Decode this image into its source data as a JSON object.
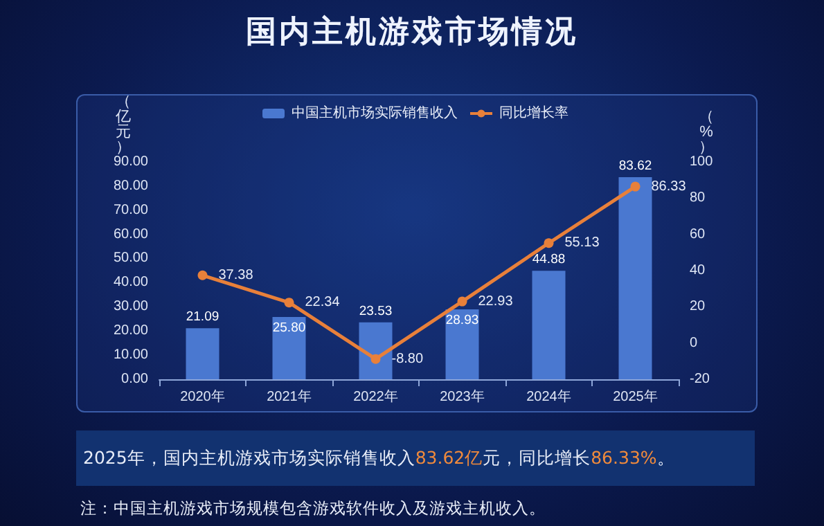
{
  "chart_data": {
    "type": "bar",
    "title": "国内主机游戏市场情况",
    "categories": [
      "2020年",
      "2021年",
      "2022年",
      "2023年",
      "2024年",
      "2025年"
    ],
    "series": [
      {
        "name": "中国主机市场实际销售收入",
        "color": "#4a78d0",
        "values": [
          21.09,
          25.8,
          23.53,
          28.93,
          44.88,
          83.62
        ],
        "value_labels": [
          "21.09",
          "25.80",
          "23.53",
          "28.93",
          "44.88",
          "83.62"
        ]
      },
      {
        "name": "同比增长率",
        "type": "line",
        "axis": "y2",
        "color": "#e8803a",
        "values": [
          37.38,
          22.34,
          -8.8,
          22.93,
          55.13,
          86.33
        ],
        "value_labels": [
          "37.38",
          "22.34",
          "-8.80",
          "22.93",
          "55.13",
          "86.33"
        ]
      }
    ],
    "ylabel": "（亿元）",
    "y2label": "（%）",
    "ylim": [
      0,
      90
    ],
    "yticks": [
      {
        "value": 0,
        "label": "0.00"
      },
      {
        "value": 10,
        "label": "10.00"
      },
      {
        "value": 20,
        "label": "20.00"
      },
      {
        "value": 30,
        "label": "30.00"
      },
      {
        "value": 40,
        "label": "40.00"
      },
      {
        "value": 50,
        "label": "50.00"
      },
      {
        "value": 60,
        "label": "60.00"
      },
      {
        "value": 70,
        "label": "70.00"
      },
      {
        "value": 80,
        "label": "80.00"
      },
      {
        "value": 90,
        "label": "90.00"
      }
    ],
    "y2lim": [
      -20,
      100
    ],
    "y2ticks": [
      -20,
      0,
      20,
      40,
      60,
      80,
      100
    ],
    "data_labels": true,
    "legend": "top",
    "grid": false,
    "marker": "circle",
    "annotations": [
      "2025年，国内主机游戏市场实际销售收入83.62亿元，同比增长86.33%。",
      "注：中国主机游戏市场规模包含游戏软件收入及游戏主机收入。"
    ]
  }
}
